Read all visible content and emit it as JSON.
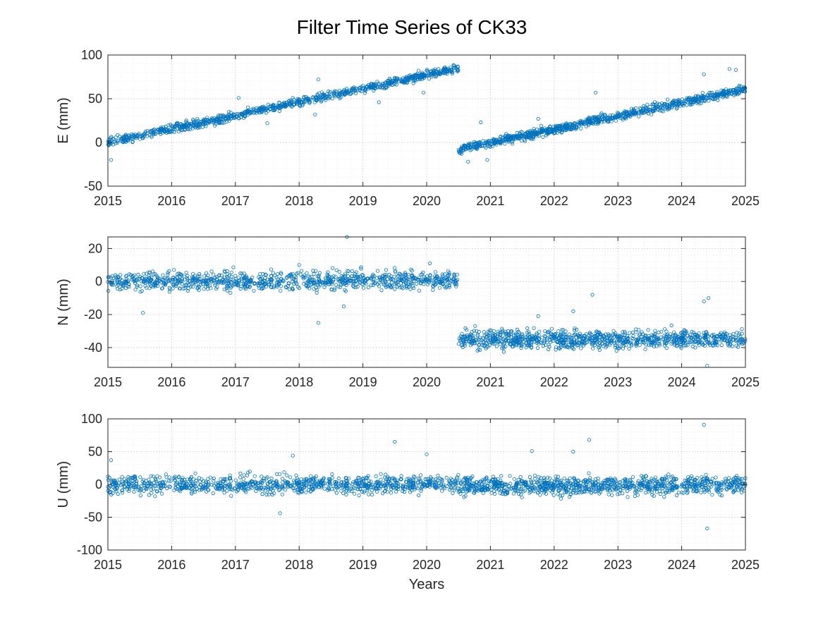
{
  "chart_data": {
    "title": "Filter Time Series of CK33",
    "type": "scatter",
    "marker_color": "#0072BD",
    "grid": "on, major and minor dotted",
    "x_label": "Years",
    "x_range": [
      2015,
      2025
    ],
    "x_ticks": [
      "2015",
      "2016",
      "2017",
      "2018",
      "2019",
      "2020",
      "2021",
      "2022",
      "2023",
      "2024",
      "2025"
    ],
    "step_epoch": 2020.5,
    "panels": [
      {
        "ylabel": "E (mm)",
        "ylim": [
          -50,
          100
        ],
        "yticks": [
          "100",
          "50",
          "0",
          "-50"
        ],
        "ytick_values": [
          100,
          50,
          0,
          -50
        ],
        "segments": [
          {
            "x": [
              2015.0,
              2020.5
            ],
            "y": [
              0,
              85
            ],
            "scatter_mm": 2.5
          },
          {
            "x": [
              2020.5,
              2025.0
            ],
            "y": [
              -8,
              61
            ],
            "scatter_mm": 2.5
          }
        ],
        "outliers": [
          {
            "x": 2015.05,
            "y": -20
          },
          {
            "x": 2017.05,
            "y": 51
          },
          {
            "x": 2017.5,
            "y": 22
          },
          {
            "x": 2018.25,
            "y": 32
          },
          {
            "x": 2018.3,
            "y": 72
          },
          {
            "x": 2019.25,
            "y": 46
          },
          {
            "x": 2019.95,
            "y": 57
          },
          {
            "x": 2020.65,
            "y": -22
          },
          {
            "x": 2020.85,
            "y": 23
          },
          {
            "x": 2020.95,
            "y": -20
          },
          {
            "x": 2021.75,
            "y": 27
          },
          {
            "x": 2022.65,
            "y": 57
          },
          {
            "x": 2024.35,
            "y": 78
          },
          {
            "x": 2024.75,
            "y": 84
          },
          {
            "x": 2024.85,
            "y": 83
          }
        ]
      },
      {
        "ylabel": "N (mm)",
        "ylim": [
          -52,
          27
        ],
        "yticks": [
          "20",
          "0",
          "-20",
          "-40"
        ],
        "ytick_values": [
          20,
          0,
          -20,
          -40
        ],
        "segments": [
          {
            "x": [
              2015.0,
              2020.5
            ],
            "y": [
              0,
              1
            ],
            "scatter_mm": 2.8
          },
          {
            "x": [
              2020.5,
              2025.0
            ],
            "y": [
              -35,
              -35
            ],
            "scatter_mm": 2.8
          }
        ],
        "outliers": [
          {
            "x": 2015.55,
            "y": -19
          },
          {
            "x": 2018.0,
            "y": 10
          },
          {
            "x": 2018.3,
            "y": -25
          },
          {
            "x": 2018.75,
            "y": 27
          },
          {
            "x": 2018.7,
            "y": -15
          },
          {
            "x": 2020.05,
            "y": 11
          },
          {
            "x": 2021.75,
            "y": -21
          },
          {
            "x": 2022.3,
            "y": -18
          },
          {
            "x": 2022.6,
            "y": -8
          },
          {
            "x": 2024.35,
            "y": -12
          },
          {
            "x": 2024.42,
            "y": -10
          },
          {
            "x": 2024.4,
            "y": -51
          }
        ]
      },
      {
        "ylabel": "U (mm)",
        "ylim": [
          -100,
          100
        ],
        "yticks": [
          "100",
          "50",
          "0",
          "-50",
          "-100"
        ],
        "ytick_values": [
          100,
          50,
          0,
          -50,
          -100
        ],
        "segments": [
          {
            "x": [
              2015.0,
              2020.5
            ],
            "y": [
              0,
              0
            ],
            "scatter_mm": 7
          },
          {
            "x": [
              2020.5,
              2025.0
            ],
            "y": [
              -3,
              0
            ],
            "scatter_mm": 7
          }
        ],
        "outliers": [
          {
            "x": 2015.05,
            "y": 37
          },
          {
            "x": 2017.7,
            "y": -44
          },
          {
            "x": 2017.9,
            "y": 44
          },
          {
            "x": 2019.5,
            "y": 65
          },
          {
            "x": 2020.0,
            "y": 46
          },
          {
            "x": 2021.65,
            "y": 51
          },
          {
            "x": 2022.3,
            "y": 50
          },
          {
            "x": 2022.55,
            "y": 68
          },
          {
            "x": 2024.35,
            "y": 91
          },
          {
            "x": 2024.4,
            "y": -67
          }
        ]
      }
    ]
  }
}
